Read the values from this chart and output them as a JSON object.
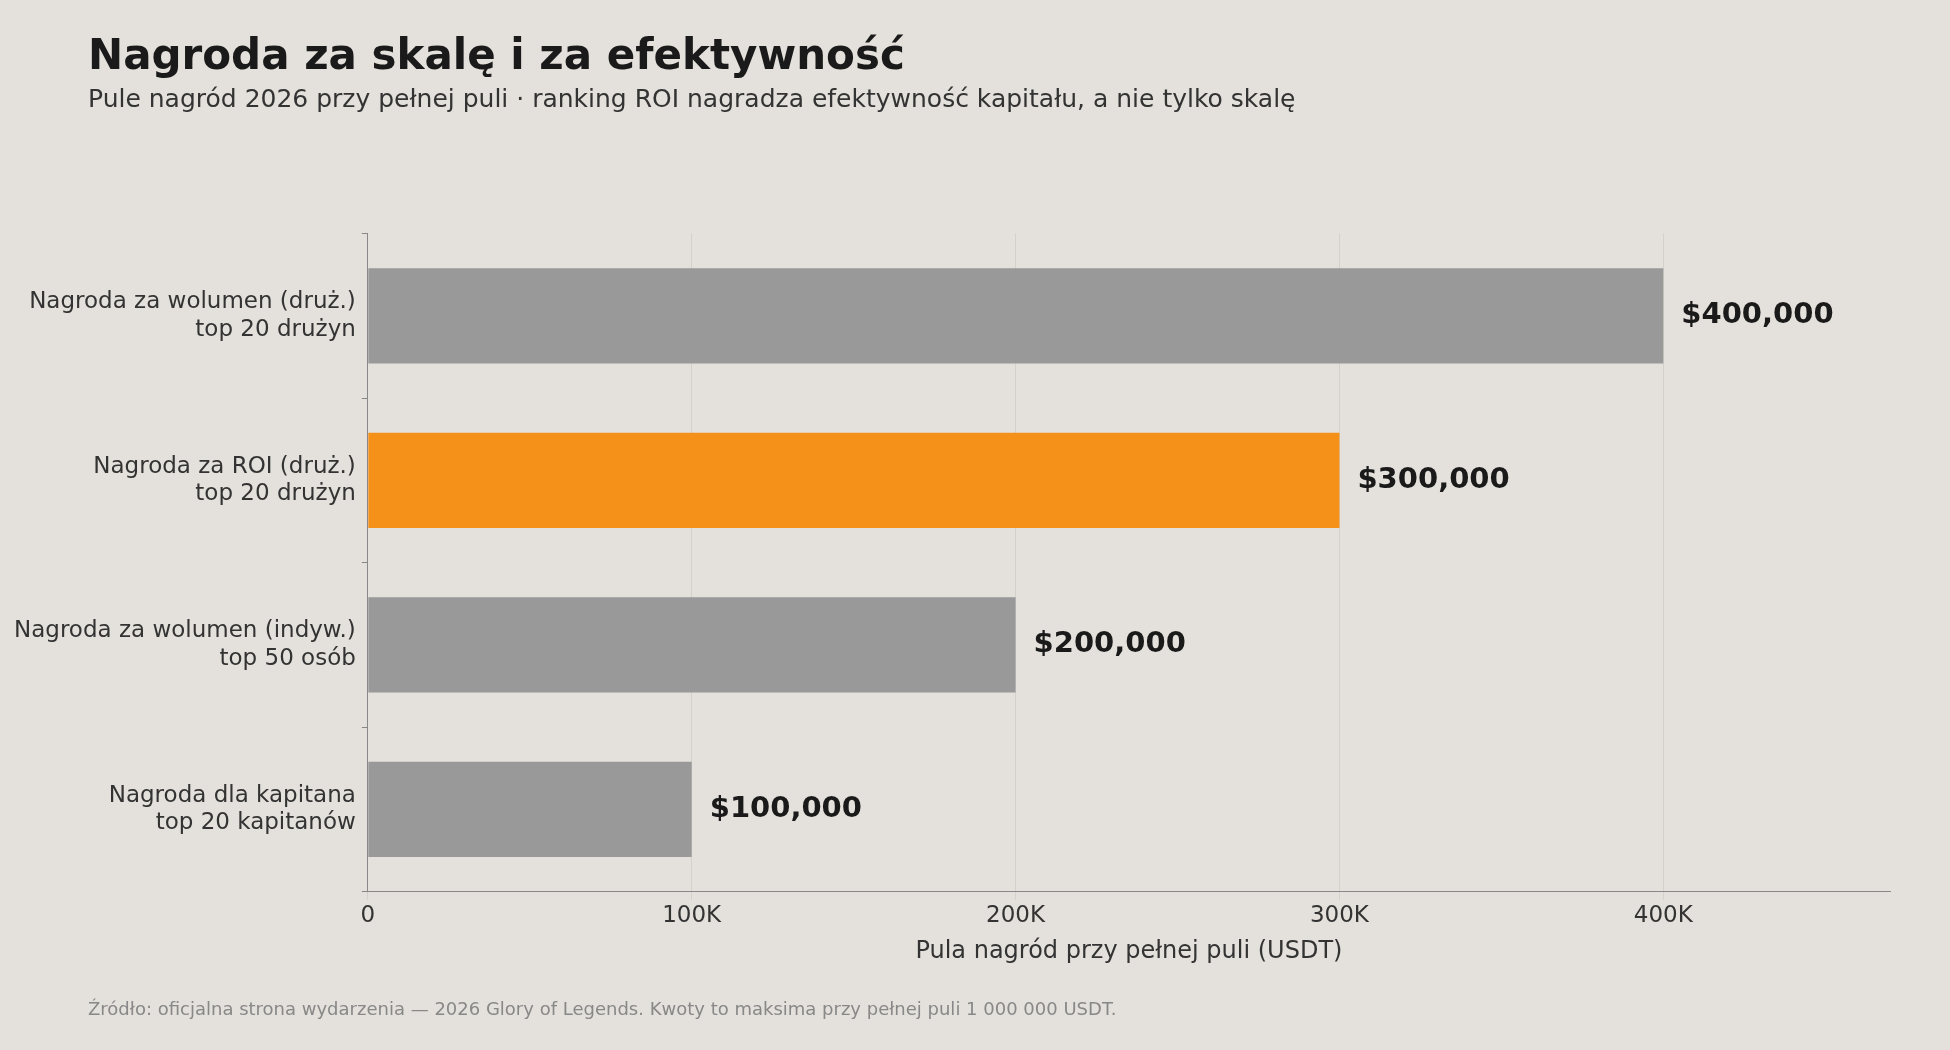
{
  "chart_data": {
    "type": "bar",
    "orientation": "horizontal",
    "title": "Nagroda za skalę i za efektywność",
    "subtitle": "Pule nagród 2026 przy pełnej puli · ranking ROI nagradza efektywność kapitału, a nie tylko skalę",
    "xlabel": "Pula nagród przy pełnej puli (USDT)",
    "categories": [
      "Nagroda za wolumen (druż.)\ntop 20 drużyn",
      "Nagroda za ROI (druż.)\ntop 20 drużyn",
      "Nagroda za wolumen (indyw.)\ntop 50 osób",
      "Nagroda dla kapitana\ntop 20 kapitanów"
    ],
    "values": [
      400000,
      300000,
      200000,
      100000
    ],
    "colors": [
      "#999999",
      "#f59019",
      "#999999",
      "#999999"
    ],
    "value_labels": [
      "$400,000",
      "$300,000",
      "$200,000",
      "$100,000"
    ],
    "xlim": [
      0,
      470000
    ],
    "xticks": [
      0,
      {
        "value": 100000,
        "label": "100K"
      },
      {
        "value": 200000,
        "label": "200K"
      },
      {
        "value": 300000,
        "label": "300K"
      },
      {
        "value": 400000,
        "label": "400K"
      }
    ],
    "grid": "x",
    "legend": false,
    "annotations": [
      "Źródło: oficjalna strona wydarzenia — 2026 Glory of Legends. Kwoty to maksima przy pełnej puli 1 000 000 USDT."
    ]
  }
}
